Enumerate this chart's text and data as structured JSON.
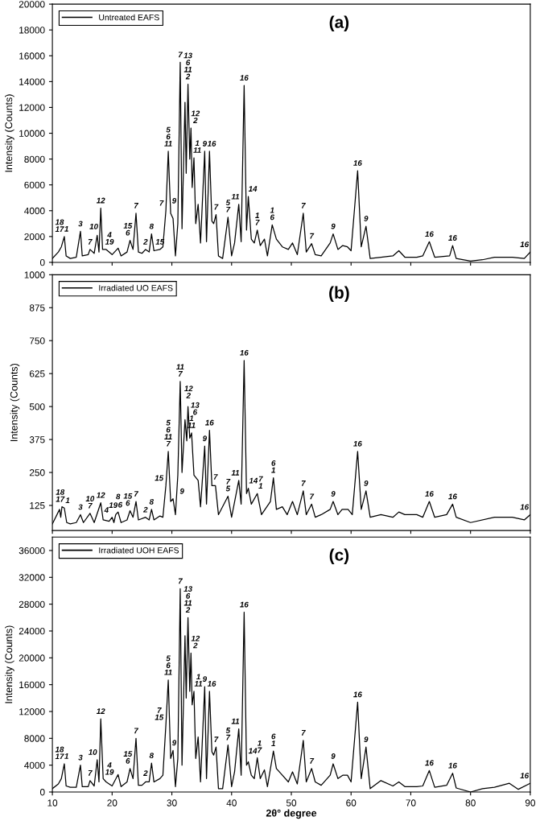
{
  "chart_data": [
    {
      "type": "line",
      "title": "(a)",
      "ylabel": "Intensity (Counts)",
      "xlim": [
        10,
        90
      ],
      "xticks": [
        10,
        20,
        30,
        40,
        50,
        60,
        70,
        80,
        90
      ],
      "ylim": [
        0,
        20000
      ],
      "yticks": [
        0,
        2000,
        4000,
        6000,
        8000,
        10000,
        12000,
        14000,
        16000,
        18000,
        20000
      ],
      "tick_labels": "y",
      "grid": false,
      "legend": "top left",
      "marker": "none",
      "line_style": "solid",
      "series": [
        {
          "name": "Untreated EAFS",
          "color": "#000000",
          "x": [
            10,
            11,
            11.5,
            12.0,
            12.3,
            13,
            14,
            14.7,
            15,
            16,
            16.3,
            17,
            17.5,
            17.8,
            18.1,
            18.4,
            19,
            20,
            21,
            21.5,
            22.5,
            23,
            23.5,
            24,
            24.4,
            25,
            25.6,
            26.2,
            26.6,
            27,
            28,
            28.5,
            29,
            29.4,
            29.8,
            30.2,
            30.6,
            31,
            31.4,
            31.7,
            32.2,
            32.4,
            32.7,
            33,
            33.2,
            33.4,
            33.7,
            34.0,
            34.4,
            34.8,
            35.5,
            35.8,
            36.3,
            36.7,
            37,
            37.4,
            37.8,
            38.5,
            39.4,
            40,
            40.5,
            41.2,
            41.6,
            42.1,
            42.5,
            42.8,
            43.3,
            43.8,
            44.3,
            44.8,
            45.5,
            46,
            46.8,
            47.5,
            48.5,
            49.5,
            50.2,
            51,
            52,
            52.5,
            53.4,
            54,
            55,
            56.5,
            57,
            57.8,
            58.6,
            59.4,
            60,
            61.1,
            61.7,
            62.5,
            63.2,
            65,
            67,
            68,
            69,
            71,
            72,
            73.1,
            74,
            76.5,
            77,
            77.6,
            80,
            82,
            84,
            87,
            89,
            90
          ],
          "values": [
            300,
            800,
            1200,
            2000,
            500,
            300,
            400,
            2400,
            500,
            600,
            1000,
            700,
            2100,
            800,
            4200,
            1000,
            1000,
            600,
            1100,
            500,
            800,
            1700,
            1000,
            3800,
            800,
            700,
            1000,
            800,
            2200,
            900,
            1000,
            1200,
            4000,
            8600,
            3800,
            3400,
            500,
            3000,
            15500,
            2600,
            12400,
            6900,
            13800,
            8000,
            10400,
            5800,
            8100,
            3000,
            4500,
            1500,
            8600,
            1600,
            8600,
            3200,
            3000,
            3700,
            500,
            300,
            3500,
            500,
            1500,
            4500,
            1600,
            13700,
            2500,
            5100,
            1800,
            1500,
            2500,
            1300,
            1800,
            500,
            2900,
            1800,
            1200,
            1000,
            1500,
            600,
            3800,
            800,
            1450,
            600,
            500,
            1500,
            2200,
            1000,
            1300,
            1200,
            900,
            7100,
            1200,
            2800,
            300,
            400,
            500,
            900,
            400,
            400,
            500,
            1600,
            400,
            500,
            1300,
            300,
            100,
            200,
            400,
            400,
            300,
            800
          ]
        }
      ],
      "annotations": [
        {
          "text": "18\n17",
          "x": 11.2,
          "y": 1200
        },
        {
          "text": "1",
          "x": 12.0,
          "y": 2000
        },
        {
          "text": "3",
          "x": 14.7,
          "y": 2400
        },
        {
          "text": "7",
          "x": 16.3,
          "y": 1000
        },
        {
          "text": "10",
          "x": 17.5,
          "y": 2100
        },
        {
          "text": "12",
          "x": 18.1,
          "y": 4200
        },
        {
          "text": "4\n19",
          "x": 19,
          "y": 1000
        },
        {
          "text": "15\n6",
          "x": 23,
          "y": 1700
        },
        {
          "text": "7",
          "x": 24,
          "y": 3800
        },
        {
          "text": "2",
          "x": 25.6,
          "y": 1000
        },
        {
          "text": "8",
          "x": 26.6,
          "y": 2200
        },
        {
          "text": "15",
          "x": 28,
          "y": 1000
        },
        {
          "text": "7",
          "x": 29,
          "y": 4000
        },
        {
          "text": "5\n6\n11",
          "x": 29.4,
          "y": 8600
        },
        {
          "text": "9",
          "x": 30.2,
          "y": 3400
        },
        {
          "text": "7",
          "x": 31.4,
          "y": 15500
        },
        {
          "text": "13\n6\n11\n2",
          "x": 32.7,
          "y": 13800
        },
        {
          "text": "12\n2",
          "x": 33.2,
          "y": 10400
        },
        {
          "text": "1\n11",
          "x": 33.7,
          "y": 8100
        },
        {
          "text": "9",
          "x": 35.5,
          "y": 8600
        },
        {
          "text": "16",
          "x": 36.3,
          "y": 8600
        },
        {
          "text": "7",
          "x": 37.4,
          "y": 3700
        },
        {
          "text": "5\n7",
          "x": 39.4,
          "y": 3500
        },
        {
          "text": "11",
          "x": 41.2,
          "y": 4500
        },
        {
          "text": "16",
          "x": 42.1,
          "y": 13700
        },
        {
          "text": "14",
          "x": 42.8,
          "y": 5100
        },
        {
          "text": "1\n7",
          "x": 44.3,
          "y": 2500
        },
        {
          "text": "1\n6",
          "x": 46.8,
          "y": 2900
        },
        {
          "text": "7",
          "x": 52,
          "y": 3800
        },
        {
          "text": "7",
          "x": 53.4,
          "y": 1450
        },
        {
          "text": "9",
          "x": 57,
          "y": 2200
        },
        {
          "text": "16",
          "x": 61.1,
          "y": 7100
        },
        {
          "text": "9",
          "x": 62.5,
          "y": 2800
        },
        {
          "text": "16",
          "x": 73.1,
          "y": 1600
        },
        {
          "text": "16",
          "x": 77,
          "y": 1300
        },
        {
          "text": "16",
          "x": 89.4,
          "y": 800
        }
      ]
    },
    {
      "type": "line",
      "title": "(b)",
      "ylabel": "Intensity (Counts)",
      "xlim": [
        10,
        90
      ],
      "xticks": [
        10,
        20,
        30,
        40,
        50,
        60,
        70,
        80,
        90
      ],
      "ylim": [
        30,
        1000
      ],
      "yticks": [
        125,
        250,
        375,
        500,
        625,
        750,
        875,
        1000
      ],
      "tick_labels": "y",
      "grid": false,
      "legend": "top left",
      "marker": "none",
      "line_style": "solid",
      "series": [
        {
          "name": "Irradiated UO EAFS",
          "color": "#000000",
          "x": [
            10,
            11.2,
            11.4,
            11.6,
            12,
            12.4,
            13,
            14,
            14.7,
            15.2,
            16.3,
            17,
            18.1,
            18.5,
            19.5,
            20,
            20.3,
            20.6,
            21,
            21.5,
            22.5,
            23,
            23.5,
            24,
            24.4,
            25.6,
            26.2,
            26.6,
            27,
            28,
            28.5,
            29,
            29.4,
            29.8,
            30.2,
            30.6,
            31,
            31.4,
            31.7,
            32.2,
            32.5,
            32.7,
            33,
            33.3,
            33.7,
            34.4,
            34.8,
            35.5,
            35.8,
            36.3,
            36.7,
            37.3,
            37.8,
            39.4,
            40,
            41.2,
            41.6,
            42.1,
            42.5,
            42.8,
            43.3,
            44.3,
            45,
            46.5,
            47,
            47.5,
            48.5,
            49.3,
            50.2,
            51,
            52,
            52.5,
            53.4,
            54,
            55,
            56.5,
            57,
            57.8,
            58.5,
            59.5,
            60.2,
            61.1,
            61.7,
            62.5,
            63.2,
            65,
            67,
            68,
            69,
            71,
            72,
            73.1,
            74,
            76,
            77,
            77.6,
            80,
            84,
            87,
            89,
            90
          ],
          "values": [
            55,
            110,
            80,
            120,
            115,
            60,
            55,
            60,
            90,
            60,
            95,
            60,
            135,
            70,
            65,
            80,
            60,
            90,
            100,
            60,
            70,
            105,
            80,
            140,
            70,
            80,
            70,
            110,
            70,
            85,
            80,
            200,
            330,
            140,
            150,
            90,
            240,
            595,
            250,
            450,
            370,
            500,
            380,
            400,
            240,
            220,
            120,
            350,
            130,
            410,
            200,
            200,
            90,
            160,
            80,
            220,
            130,
            675,
            170,
            190,
            130,
            170,
            90,
            140,
            230,
            110,
            120,
            90,
            140,
            90,
            180,
            90,
            130,
            80,
            90,
            110,
            140,
            90,
            110,
            110,
            90,
            330,
            110,
            180,
            80,
            90,
            80,
            100,
            90,
            90,
            80,
            140,
            80,
            90,
            130,
            80,
            60,
            80,
            80,
            70,
            90
          ]
        }
      ],
      "annotations": [
        {
          "text": "18\n17",
          "x": 11.3,
          "y": 120
        },
        {
          "text": "1",
          "x": 12,
          "y": 115
        },
        {
          "text": "3",
          "x": 14.7,
          "y": 90
        },
        {
          "text": "10\n7",
          "x": 16.3,
          "y": 95
        },
        {
          "text": "12",
          "x": 18.1,
          "y": 135
        },
        {
          "text": "4",
          "x": 18.5,
          "y": 70
        },
        {
          "text": "19",
          "x": 20,
          "y": 80
        },
        {
          "text": "6",
          "x": 20.6,
          "y": 90
        },
        {
          "text": "8",
          "x": 21,
          "y": 100
        },
        {
          "text": "15\n6",
          "x": 23,
          "y": 105
        },
        {
          "text": "7",
          "x": 24,
          "y": 140
        },
        {
          "text": "2",
          "x": 25.6,
          "y": 80
        },
        {
          "text": "8",
          "x": 26.6,
          "y": 110
        },
        {
          "text": "15",
          "x": 28.8,
          "y": 200
        },
        {
          "text": "5\n6\n11\n7",
          "x": 29.4,
          "y": 330
        },
        {
          "text": "9",
          "x": 30.2,
          "y": 150
        },
        {
          "text": "11\n7",
          "x": 31.4,
          "y": 595
        },
        {
          "text": "13\n6",
          "x": 32.2,
          "y": 450
        },
        {
          "text": "12\n2",
          "x": 32.8,
          "y": 500
        },
        {
          "text": "1\n11",
          "x": 33.3,
          "y": 400
        },
        {
          "text": "9",
          "x": 35.5,
          "y": 350
        },
        {
          "text": "16",
          "x": 36.3,
          "y": 410
        },
        {
          "text": "7",
          "x": 37.3,
          "y": 200
        },
        {
          "text": "7\n5",
          "x": 39.4,
          "y": 160
        },
        {
          "text": "11",
          "x": 41.2,
          "y": 220
        },
        {
          "text": "16",
          "x": 42.1,
          "y": 675
        },
        {
          "text": "14",
          "x": 42.9,
          "y": 190
        },
        {
          "text": "7\n1",
          "x": 44.3,
          "y": 170
        },
        {
          "text": "6\n1",
          "x": 47,
          "y": 230
        },
        {
          "text": "7",
          "x": 52,
          "y": 180
        },
        {
          "text": "7",
          "x": 53.4,
          "y": 130
        },
        {
          "text": "9",
          "x": 57,
          "y": 140
        },
        {
          "text": "16",
          "x": 61.1,
          "y": 330
        },
        {
          "text": "9",
          "x": 62.5,
          "y": 180
        },
        {
          "text": "16",
          "x": 73.1,
          "y": 140
        },
        {
          "text": "16",
          "x": 77,
          "y": 130
        },
        {
          "text": "16",
          "x": 89.4,
          "y": 90
        }
      ]
    },
    {
      "type": "line",
      "title": "(c)",
      "xlabel": "2θ° degree",
      "ylabel": "Intensity (Counts)",
      "xlim": [
        10,
        90
      ],
      "xticks": [
        10,
        20,
        30,
        40,
        50,
        60,
        70,
        80,
        90
      ],
      "ylim": [
        0,
        38000
      ],
      "yticks": [
        0,
        4000,
        8000,
        12000,
        16000,
        20000,
        24000,
        28000,
        32000,
        36000
      ],
      "grid": false,
      "legend": "top left",
      "marker": "none",
      "line_style": "solid",
      "series": [
        {
          "name": "Irradiated UOH EAFS",
          "color": "#000000",
          "x": [
            10,
            11,
            11.5,
            12.0,
            12.3,
            13,
            14,
            14.7,
            15,
            16,
            16.3,
            17,
            17.5,
            17.8,
            18.1,
            18.5,
            19,
            20,
            21,
            21.5,
            22.5,
            23,
            23.5,
            24,
            24.4,
            25,
            25.6,
            26.2,
            26.6,
            27,
            28,
            28.5,
            29,
            29.4,
            29.8,
            30.2,
            30.6,
            31,
            31.4,
            31.7,
            32.2,
            32.4,
            32.7,
            33,
            33.2,
            33.4,
            33.7,
            34.0,
            34.4,
            34.8,
            35.5,
            35.8,
            36.3,
            36.7,
            37,
            37.4,
            37.8,
            38.5,
            39.4,
            40,
            40.5,
            41.2,
            41.6,
            42.1,
            42.5,
            42.8,
            43.3,
            43.8,
            44.3,
            44.8,
            45.5,
            46,
            47,
            47.5,
            48.5,
            49.5,
            50.2,
            51,
            52,
            52.5,
            53.4,
            54,
            55,
            56.5,
            57,
            57.8,
            58.6,
            59.4,
            60,
            61.1,
            61.7,
            62.5,
            63.2,
            65,
            67,
            68,
            69,
            71,
            72,
            73.1,
            74,
            76,
            77,
            77.6,
            80,
            82,
            84,
            86.5,
            88,
            90
          ],
          "values": [
            500,
            1200,
            2000,
            4200,
            900,
            700,
            700,
            4000,
            800,
            800,
            1700,
            900,
            4800,
            1500,
            10900,
            2000,
            1500,
            900,
            2600,
            800,
            1500,
            3500,
            2000,
            8000,
            1000,
            1000,
            1500,
            1500,
            4300,
            1500,
            2000,
            2500,
            10000,
            16700,
            5000,
            6200,
            800,
            5000,
            30300,
            4000,
            23300,
            14000,
            26000,
            15000,
            20700,
            13000,
            15000,
            5000,
            8200,
            1500,
            15700,
            2000,
            15000,
            6000,
            5500,
            6700,
            500,
            500,
            7000,
            800,
            3000,
            9400,
            2500,
            26800,
            4000,
            4500,
            2500,
            2000,
            5100,
            2000,
            3300,
            800,
            6100,
            3500,
            2500,
            1500,
            3000,
            1200,
            7700,
            1500,
            3500,
            1500,
            1000,
            2500,
            4200,
            2000,
            2500,
            2500,
            1500,
            13400,
            2000,
            6700,
            500,
            1700,
            900,
            1500,
            800,
            800,
            900,
            3200,
            700,
            1000,
            2800,
            600,
            0,
            500,
            700,
            1300,
            400,
            1300
          ]
        }
      ],
      "annotations": [
        {
          "text": "18\n17",
          "x": 11.2,
          "y": 2000
        },
        {
          "text": "1",
          "x": 12.0,
          "y": 4200
        },
        {
          "text": "3",
          "x": 14.7,
          "y": 4000
        },
        {
          "text": "7",
          "x": 16.3,
          "y": 1700
        },
        {
          "text": "10",
          "x": 17.5,
          "y": 4800
        },
        {
          "text": "12",
          "x": 18.1,
          "y": 10900
        },
        {
          "text": "4\n19",
          "x": 19,
          "y": 1500
        },
        {
          "text": "15\n6",
          "x": 23,
          "y": 3500
        },
        {
          "text": "7",
          "x": 24,
          "y": 8000
        },
        {
          "text": "2",
          "x": 25.6,
          "y": 1500
        },
        {
          "text": "8",
          "x": 26.6,
          "y": 4300
        },
        {
          "text": "7\n15",
          "x": 29,
          "y": 10000
        },
        {
          "text": "5\n6\n11",
          "x": 29.4,
          "y": 16700
        },
        {
          "text": "9",
          "x": 30.2,
          "y": 6200
        },
        {
          "text": "7",
          "x": 31.4,
          "y": 30300
        },
        {
          "text": "13\n6\n11\n2",
          "x": 32.7,
          "y": 26000
        },
        {
          "text": "12\n2",
          "x": 33.2,
          "y": 20700
        },
        {
          "text": "1\n11",
          "x": 33.7,
          "y": 15000
        },
        {
          "text": "9",
          "x": 35.5,
          "y": 15700
        },
        {
          "text": "16",
          "x": 36.3,
          "y": 15000
        },
        {
          "text": "7",
          "x": 37.4,
          "y": 6700
        },
        {
          "text": "5\n7",
          "x": 39.4,
          "y": 7000
        },
        {
          "text": "11",
          "x": 41.2,
          "y": 9400
        },
        {
          "text": "16",
          "x": 42.1,
          "y": 26800
        },
        {
          "text": "14",
          "x": 42.8,
          "y": 4500
        },
        {
          "text": "1\n7",
          "x": 44.3,
          "y": 5100
        },
        {
          "text": "6\n1",
          "x": 47,
          "y": 6100
        },
        {
          "text": "7",
          "x": 52,
          "y": 7700
        },
        {
          "text": "7",
          "x": 53.4,
          "y": 3500
        },
        {
          "text": "9",
          "x": 57,
          "y": 4200
        },
        {
          "text": "16",
          "x": 61.1,
          "y": 13400
        },
        {
          "text": "9",
          "x": 62.5,
          "y": 6700
        },
        {
          "text": "16",
          "x": 73.1,
          "y": 3200
        },
        {
          "text": "16",
          "x": 77,
          "y": 2800
        },
        {
          "text": "16",
          "x": 89.4,
          "y": 1300
        }
      ]
    }
  ]
}
